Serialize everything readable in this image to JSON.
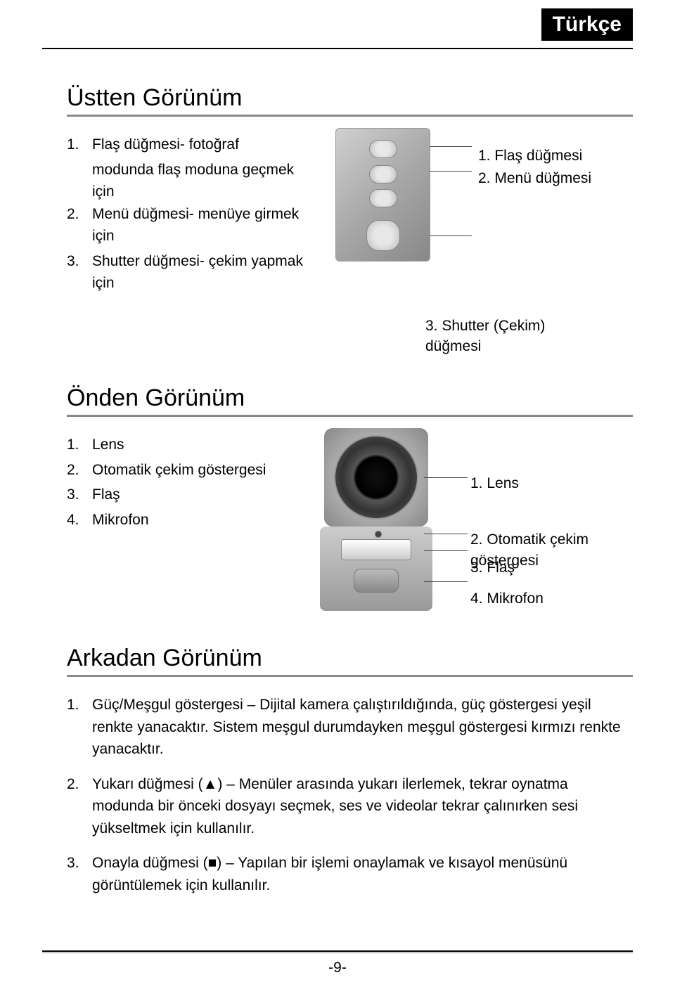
{
  "lang_badge": "Türkçe",
  "page_number": "-9-",
  "top_view": {
    "title": "Üstten Görünüm",
    "items": [
      {
        "num": "1.",
        "text": "Flaş düğmesi- fotoğraf",
        "cont": "modunda flaş moduna geçmek için"
      },
      {
        "num": "2.",
        "text": "Menü düğmesi- menüye girmek için"
      },
      {
        "num": "3.",
        "text": "Shutter düğmesi- çekim yapmak için"
      }
    ],
    "callouts": [
      "1. Flaş düğmesi",
      "2. Menü düğmesi"
    ],
    "shutter_callout": "3. Shutter (Çekim) düğmesi"
  },
  "front_view": {
    "title": "Önden Görünüm",
    "items": [
      {
        "num": "1.",
        "text": "Lens"
      },
      {
        "num": "2.",
        "text": "Otomatik çekim göstergesi"
      },
      {
        "num": "3.",
        "text": "Flaş"
      },
      {
        "num": "4.",
        "text": "Mikrofon"
      }
    ],
    "callouts": [
      "1. Lens",
      "2. Otomatik çekim göstergesi",
      "3. Flaş",
      "4. Mikrofon"
    ]
  },
  "rear_view": {
    "title": "Arkadan Görünüm",
    "items": [
      {
        "num": "1.",
        "text": "Güç/Meşgul göstergesi – Dijital kamera çalıştırıldığında, güç göstergesi yeşil renkte yanacaktır. Sistem meşgul durumdayken meşgul göstergesi kırmızı renkte yanacaktır."
      },
      {
        "num": "2.",
        "text": "Yukarı düğmesi (▲) – Menüler arasında yukarı ilerlemek, tekrar oynatma modunda bir önceki dosyayı seçmek, ses ve videolar tekrar çalınırken sesi yükseltmek için kullanılır."
      },
      {
        "num": "3.",
        "text": "Onayla düğmesi (■) – Yapılan bir işlemi onaylamak ve kısayol menüsünü görüntülemek için kullanılır."
      }
    ]
  }
}
